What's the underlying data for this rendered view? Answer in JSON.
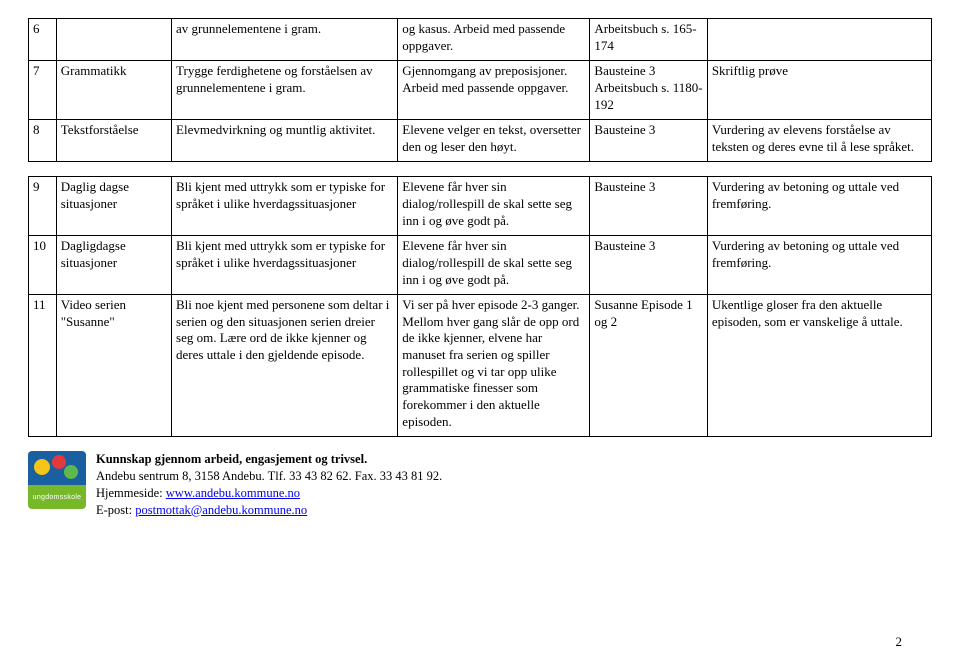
{
  "table1": {
    "rows": [
      {
        "num": "6",
        "topic": "",
        "competence": "av grunnelementene i gram.",
        "activity": "og kasus. Arbeid med passende oppgaver.",
        "source": "Arbeitsbuch s. 165-174",
        "evaluation": ""
      },
      {
        "num": "7",
        "topic": "Grammatikk",
        "competence": "Trygge ferdighetene og forståelsen av grunnelementene i gram.",
        "activity": "Gjennomgang av preposisjoner. Arbeid med passende oppgaver.",
        "source": "Bausteine 3 Arbeitsbuch s. 1180-192",
        "evaluation": "Skriftlig prøve"
      },
      {
        "num": "8",
        "topic": "Tekstforståelse",
        "competence": "Elevmedvirkning og muntlig aktivitet.",
        "activity": "Elevene velger en tekst, oversetter den og leser den høyt.",
        "source": "Bausteine 3",
        "evaluation": "Vurdering av elevens forståelse av teksten og deres evne til å lese språket."
      }
    ]
  },
  "table2": {
    "rows": [
      {
        "num": "9",
        "topic": "Daglig dagse situasjoner",
        "competence": "Bli kjent med uttrykk som er typiske for språket i ulike hverdagssituasjoner",
        "activity": " Elevene får hver sin dialog/rollespill de skal sette seg inn i og øve godt på.",
        "source": "Bausteine 3",
        "evaluation": "Vurdering av betoning og uttale ved fremføring."
      },
      {
        "num": "10",
        "topic": "Dagligdagse situasjoner",
        "competence": "Bli kjent med uttrykk som er typiske for språket i ulike hverdagssituasjoner",
        "activity": " Elevene får hver sin dialog/rollespill de skal sette seg inn i og øve godt på.",
        "source": "Bausteine 3",
        "evaluation": "Vurdering av betoning og uttale ved fremføring."
      },
      {
        "num": "11",
        "topic": "Video serien \"Susanne\"",
        "competence": "Bli noe kjent med personene som deltar i serien og den situasjonen serien dreier seg om. Lære ord de ikke kjenner og deres uttale i den gjeldende episode.",
        "activity": "Vi ser på hver episode 2-3 ganger. Mellom hver gang slår de opp ord de ikke kjenner, elvene har manuset fra serien og spiller rollespillet og vi tar opp ulike grammatiske finesser som forekommer i den aktuelle episoden.",
        "source": "Susanne Episode 1 og 2",
        "evaluation": "Ukentlige gloser fra den aktuelle episoden, som er vanskelige å uttale."
      }
    ]
  },
  "footer": {
    "line1": "Kunnskap gjennom arbeid, engasjement og trivsel.",
    "line2": "Andebu sentrum 8, 3158 Andebu. Tlf. 33 43 82 62. Fax. 33 43 81 92.",
    "homepage_label": "Hjemmeside: ",
    "homepage_link": "www.andebu.kommune.no",
    "email_label": "E-post: ",
    "email_link": "postmottak@andebu.kommune.no",
    "logo_text": "ungdomsskole"
  },
  "page_number": "2"
}
